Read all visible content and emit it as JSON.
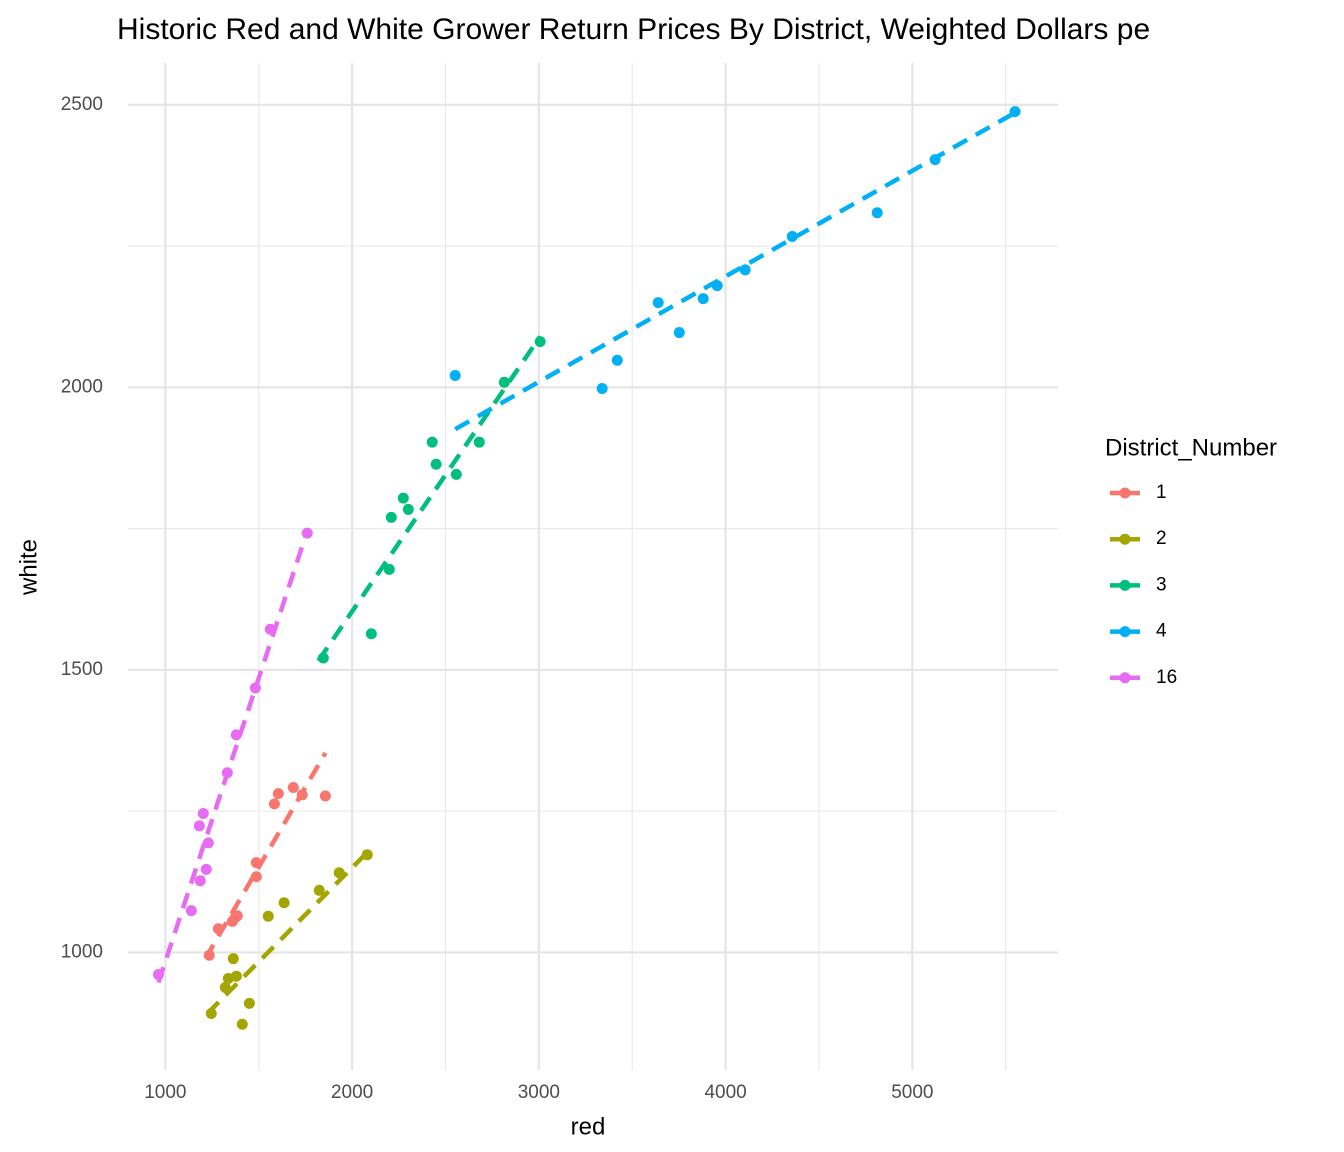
{
  "chart_data": {
    "type": "scatter",
    "title": "Historic Red and White Grower Return Prices By District, Weighted Dollars pe",
    "x_label": "red",
    "y_label": "white",
    "legend_title": "District_Number",
    "legend_position": "right",
    "grid": true,
    "xlim": [
      800,
      5780
    ],
    "xticks": [
      1000,
      2000,
      3000,
      4000,
      5000
    ],
    "ylim": [
      792,
      2574
    ],
    "yticks": [
      1000,
      1500,
      2000,
      2500
    ],
    "series": [
      {
        "name": "1",
        "color": "#F8766D",
        "x": [
          1235,
          1284,
          1359,
          1385,
          1375,
          1487,
          1487,
          1584,
          1605,
          1685,
          1733,
          1857
        ],
        "values": [
          995,
          1042,
          1055,
          1065,
          1062,
          1134,
          1159,
          1263,
          1281,
          1292,
          1279,
          1277
        ],
        "trend": {
          "x": [
            1214,
            1857
          ],
          "y": [
            989,
            1353
          ]
        }
      },
      {
        "name": "2",
        "color": "#A3A500",
        "x": [
          1246,
          1321,
          1337,
          1364,
          1380,
          1412,
          1450,
          1551,
          1636,
          1824,
          1931,
          2081
        ],
        "values": [
          892,
          938,
          954,
          989,
          958,
          873,
          910,
          1064,
          1088,
          1110,
          1141,
          1173
        ],
        "trend": {
          "x": [
            1225,
            2081
          ],
          "y": [
            892,
            1177
          ]
        }
      },
      {
        "name": "3",
        "color": "#00BF7D",
        "x": [
          1846,
          2103,
          2199,
          2210,
          2274,
          2301,
          2429,
          2450,
          2558,
          2681,
          2815,
          3007
        ],
        "values": [
          1521,
          1564,
          1678,
          1770,
          1804,
          1784,
          1903,
          1864,
          1846,
          1903,
          2009,
          2081
        ],
        "trend": {
          "x": [
            1819,
            3007
          ],
          "y": [
            1516,
            2090
          ]
        }
      },
      {
        "name": "4",
        "color": "#00B0F6",
        "x": [
          2552,
          3339,
          3420,
          3639,
          3752,
          3880,
          3955,
          4105,
          4357,
          4812,
          5122,
          5550
        ],
        "values": [
          2021,
          1998,
          2048,
          2150,
          2097,
          2157,
          2180,
          2208,
          2267,
          2309,
          2403,
          2488
        ],
        "trend": {
          "x": [
            2552,
            5550
          ],
          "y": [
            1926,
            2486
          ]
        }
      },
      {
        "name": "16",
        "color": "#E76BF3",
        "x": [
          963,
          1139,
          1187,
          1182,
          1203,
          1219,
          1230,
          1332,
          1380,
          1482,
          1562,
          1760
        ],
        "values": [
          961,
          1074,
          1127,
          1224,
          1246,
          1147,
          1194,
          1318,
          1385,
          1468,
          1572,
          1742
        ],
        "trend": {
          "x": [
            963,
            1760
          ],
          "y": [
            947,
            1746
          ]
        }
      }
    ]
  }
}
